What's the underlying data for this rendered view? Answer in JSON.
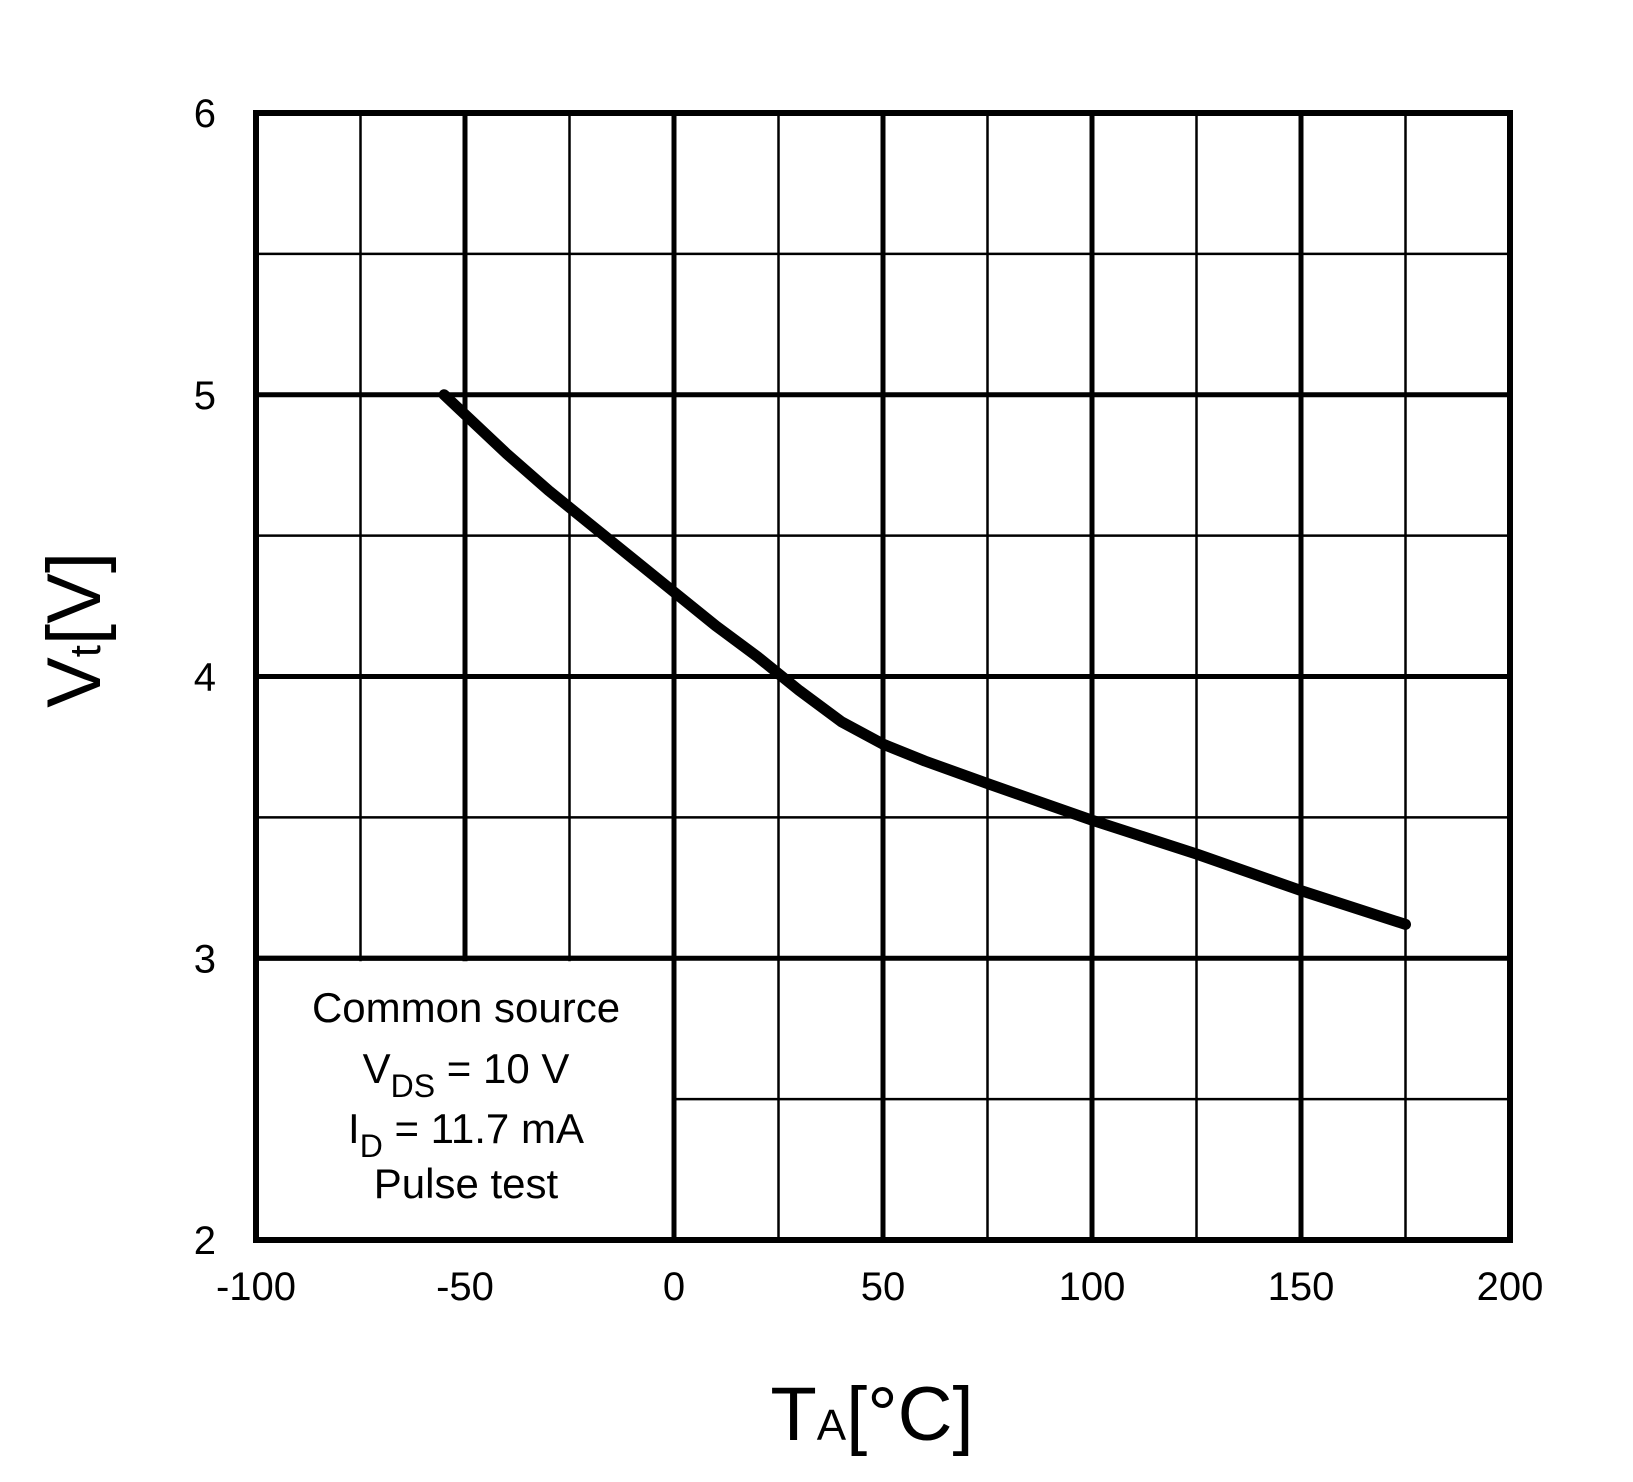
{
  "chart_data": {
    "type": "line",
    "xlabel": {
      "main": "T",
      "sub": "A",
      "unit": "[°C]"
    },
    "ylabel": {
      "main": "V",
      "sub": "t",
      "unit": "[V]"
    },
    "xlim": [
      -100,
      200
    ],
    "ylim": [
      2,
      6
    ],
    "x_ticks": [
      -100,
      -50,
      0,
      50,
      100,
      150,
      200
    ],
    "y_ticks": [
      2,
      3,
      4,
      5,
      6
    ],
    "grid": true,
    "x_minor_grid_step": 25,
    "y_minor_grid_step": 0.5,
    "series": [
      {
        "color": "#000000",
        "x": [
          -55,
          -50,
          -40,
          -30,
          -20,
          -10,
          0,
          10,
          20,
          25,
          30,
          40,
          50,
          60,
          75,
          100,
          125,
          150,
          175
        ],
        "y": [
          5.0,
          4.93,
          4.79,
          4.66,
          4.54,
          4.42,
          4.3,
          4.18,
          4.07,
          4.01,
          3.95,
          3.84,
          3.76,
          3.7,
          3.62,
          3.49,
          3.37,
          3.24,
          3.12
        ]
      }
    ],
    "annotation": {
      "line1": "Common source",
      "line2": {
        "main": "V",
        "sub": "DS",
        "rest": " = 10 V"
      },
      "line3": {
        "main": "I",
        "sub": "D",
        "rest": " = 11.7 mA"
      },
      "line4": "Pulse test"
    }
  }
}
